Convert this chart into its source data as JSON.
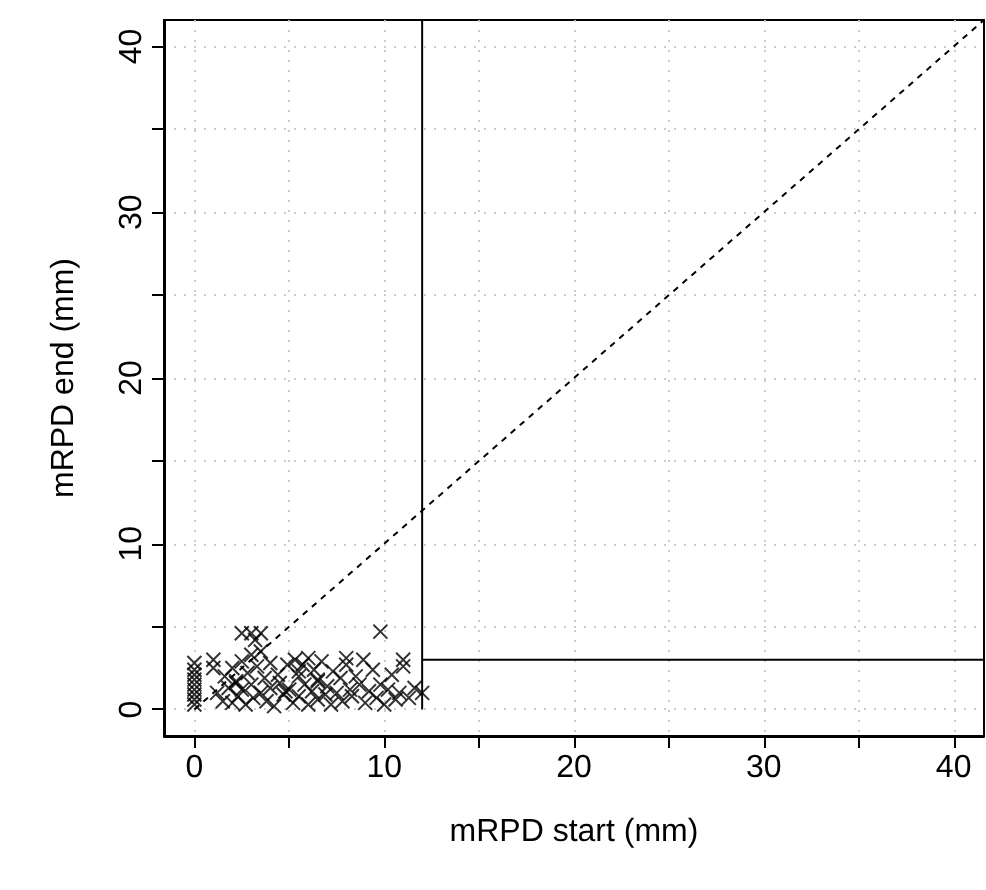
{
  "chart_data": {
    "type": "scatter",
    "xlabel": "mRPD start (mm)",
    "ylabel": "mRPD end (mm)",
    "xlim": [
      -1.6,
      41.6
    ],
    "ylim": [
      -1.6,
      41.6
    ],
    "xticks": [
      0,
      {
        "value": 5,
        "label": null
      },
      10,
      {
        "value": 15,
        "label": null
      },
      20,
      {
        "value": 25,
        "label": null
      },
      30,
      {
        "value": 35,
        "label": null
      },
      40
    ],
    "yticks": [
      0,
      {
        "value": 5,
        "label": null
      },
      10,
      {
        "value": 15,
        "label": null
      },
      20,
      {
        "value": 25,
        "label": null
      },
      30,
      {
        "value": 35,
        "label": null
      },
      40
    ],
    "grid": true,
    "marker": "cross",
    "series": [
      {
        "color": "#000000",
        "x": [
          0,
          0,
          0,
          0,
          0,
          0,
          0,
          0,
          0,
          1.0,
          1.2,
          1.5,
          1.6,
          1.8,
          2.0,
          2.0,
          2.2,
          2.3,
          2.5,
          2.5,
          2.7,
          2.8,
          3.0,
          3.0,
          3.1,
          3.3,
          3.5,
          3.5,
          3.7,
          3.8,
          4.0,
          4.0,
          4.2,
          4.4,
          4.5,
          4.7,
          4.9,
          5.0,
          5.2,
          5.3,
          5.5,
          5.5,
          5.7,
          5.8,
          6.0,
          6.0,
          6.2,
          6.3,
          6.5,
          6.5,
          6.7,
          6.9,
          7.0,
          7.2,
          7.3,
          7.5,
          7.7,
          7.8,
          8.0,
          8.2,
          8.3,
          8.5,
          8.7,
          8.9,
          9.0,
          9.2,
          9.4,
          9.6,
          9.8,
          10.0,
          10.2,
          10.4,
          10.6,
          10.8,
          11.0,
          11.3,
          11.6,
          12.0,
          2.5,
          3.0,
          3.5,
          3.2,
          9.8,
          1.0,
          8.0,
          11.0,
          5.5,
          6.5,
          2.2,
          4.8
        ],
        "values": [
          0.3,
          0.6,
          0.9,
          1.2,
          1.5,
          1.8,
          2.1,
          2.4,
          2.8,
          3.0,
          1.0,
          0.5,
          2.0,
          1.3,
          0.4,
          2.5,
          1.7,
          0.8,
          2.9,
          1.2,
          0.3,
          2.2,
          1.5,
          3.3,
          0.7,
          2.6,
          1.0,
          3.5,
          1.9,
          0.5,
          2.8,
          1.3,
          0.2,
          2.1,
          1.6,
          0.9,
          2.7,
          1.2,
          0.4,
          3.0,
          2.0,
          0.8,
          2.7,
          1.5,
          0.3,
          3.1,
          1.1,
          2.4,
          0.6,
          1.8,
          2.9,
          0.9,
          1.4,
          0.3,
          2.3,
          1.0,
          1.9,
          0.5,
          2.7,
          1.2,
          0.8,
          2.0,
          1.5,
          3.0,
          0.4,
          1.1,
          2.4,
          0.7,
          1.5,
          0.3,
          1.2,
          2.1,
          0.6,
          1.0,
          3.0,
          0.7,
          1.3,
          1.0,
          4.6,
          4.6,
          4.6,
          4.2,
          4.7,
          2.5,
          3.1,
          2.6,
          2.3,
          1.7,
          1.6,
          1.1
        ]
      },
      {
        "type": "line",
        "marker": "none",
        "color": "#000000",
        "line_style": "dashed",
        "x": [
          0,
          41.6
        ],
        "values": [
          0,
          41.6
        ]
      },
      {
        "type": "line",
        "marker": "none",
        "color": "#000000",
        "line_style": "solid",
        "x": [
          12,
          12
        ],
        "values": [
          0,
          41.6
        ]
      },
      {
        "type": "line",
        "marker": "none",
        "color": "#000000",
        "line_style": "solid",
        "x": [
          12,
          41.6
        ],
        "values": [
          3,
          3
        ]
      }
    ]
  }
}
